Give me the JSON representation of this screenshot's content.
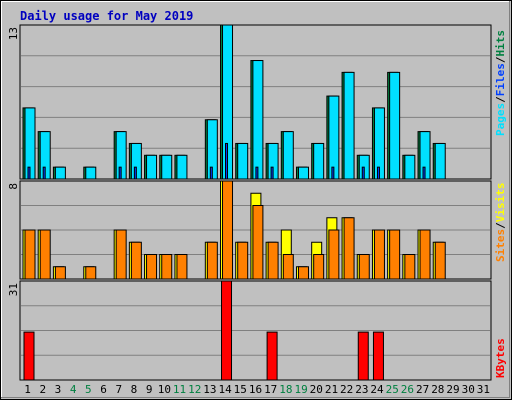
{
  "title": "Daily usage for May 2019",
  "colors": {
    "frame": "#c0c0c0",
    "plot": "#c0c0c0",
    "title": "#0000c0",
    "hits": "#008040",
    "files": "#0040ff",
    "pages": "#00e0ff",
    "visits": "#ffff00",
    "sites": "#ff8000",
    "kbytes": "#ff0000",
    "weekend": "#008040",
    "weekday": "#000000"
  },
  "chart_data": [
    {
      "type": "bar",
      "panel": "hits-files-pages",
      "ymax_label": "13",
      "ylim": [
        0,
        13
      ],
      "legend": [
        "Hits",
        "/",
        "Files",
        "/",
        "Pages"
      ],
      "categories": [
        "1",
        "2",
        "3",
        "4",
        "5",
        "6",
        "7",
        "8",
        "9",
        "10",
        "11",
        "12",
        "13",
        "14",
        "15",
        "16",
        "17",
        "18",
        "19",
        "20",
        "21",
        "22",
        "23",
        "24",
        "25",
        "26",
        "27",
        "28",
        "29",
        "30",
        "31"
      ],
      "series": [
        {
          "name": "Hits",
          "values": [
            6,
            4,
            1,
            0,
            1,
            0,
            4,
            3,
            2,
            2,
            2,
            0,
            5,
            13,
            3,
            10,
            3,
            4,
            1,
            3,
            7,
            9,
            2,
            6,
            9,
            2,
            4,
            3,
            0,
            0,
            0
          ]
        },
        {
          "name": "Files",
          "values": [
            1,
            1,
            0,
            0,
            0,
            0,
            1,
            1,
            0,
            0,
            0,
            0,
            1,
            3,
            0,
            1,
            1,
            0,
            0,
            0,
            1,
            0,
            1,
            1,
            0,
            0,
            1,
            0,
            0,
            0,
            0
          ]
        },
        {
          "name": "Pages",
          "values": [
            6,
            4,
            1,
            0,
            1,
            0,
            4,
            3,
            2,
            2,
            2,
            0,
            5,
            13,
            3,
            10,
            3,
            4,
            1,
            3,
            7,
            9,
            2,
            6,
            9,
            2,
            4,
            3,
            0,
            0,
            0
          ]
        }
      ]
    },
    {
      "type": "bar",
      "panel": "visits-sites",
      "ymax_label": "8",
      "ylim": [
        0,
        8
      ],
      "legend": [
        "Visits",
        "/",
        "Sites"
      ],
      "categories": [
        "1",
        "2",
        "3",
        "4",
        "5",
        "6",
        "7",
        "8",
        "9",
        "10",
        "11",
        "12",
        "13",
        "14",
        "15",
        "16",
        "17",
        "18",
        "19",
        "20",
        "21",
        "22",
        "23",
        "24",
        "25",
        "26",
        "27",
        "28",
        "29",
        "30",
        "31"
      ],
      "series": [
        {
          "name": "Visits",
          "values": [
            4,
            4,
            1,
            0,
            1,
            0,
            4,
            3,
            2,
            2,
            2,
            0,
            3,
            8,
            3,
            7,
            3,
            4,
            1,
            3,
            5,
            5,
            2,
            4,
            4,
            2,
            4,
            3,
            0,
            0,
            0
          ]
        },
        {
          "name": "Sites",
          "values": [
            4,
            4,
            1,
            0,
            1,
            0,
            4,
            3,
            2,
            2,
            2,
            0,
            3,
            8,
            3,
            6,
            3,
            2,
            1,
            2,
            4,
            5,
            2,
            4,
            4,
            2,
            4,
            3,
            0,
            0,
            0
          ]
        }
      ]
    },
    {
      "type": "bar",
      "panel": "kbytes",
      "ymax_label": "31",
      "ylim": [
        0,
        31
      ],
      "legend": [
        "KBytes"
      ],
      "categories": [
        "1",
        "2",
        "3",
        "4",
        "5",
        "6",
        "7",
        "8",
        "9",
        "10",
        "11",
        "12",
        "13",
        "14",
        "15",
        "16",
        "17",
        "18",
        "19",
        "20",
        "21",
        "22",
        "23",
        "24",
        "25",
        "26",
        "27",
        "28",
        "29",
        "30",
        "31"
      ],
      "series": [
        {
          "name": "KBytes",
          "values": [
            15,
            0,
            0,
            0,
            0,
            0,
            0,
            0,
            0,
            0,
            0,
            0,
            0,
            31,
            0,
            0,
            15,
            0,
            0,
            0,
            0,
            0,
            15,
            15,
            0,
            0,
            0,
            0,
            0,
            0,
            0
          ]
        }
      ]
    }
  ],
  "weekend_days": [
    4,
    5,
    11,
    12,
    18,
    19,
    25,
    26
  ]
}
